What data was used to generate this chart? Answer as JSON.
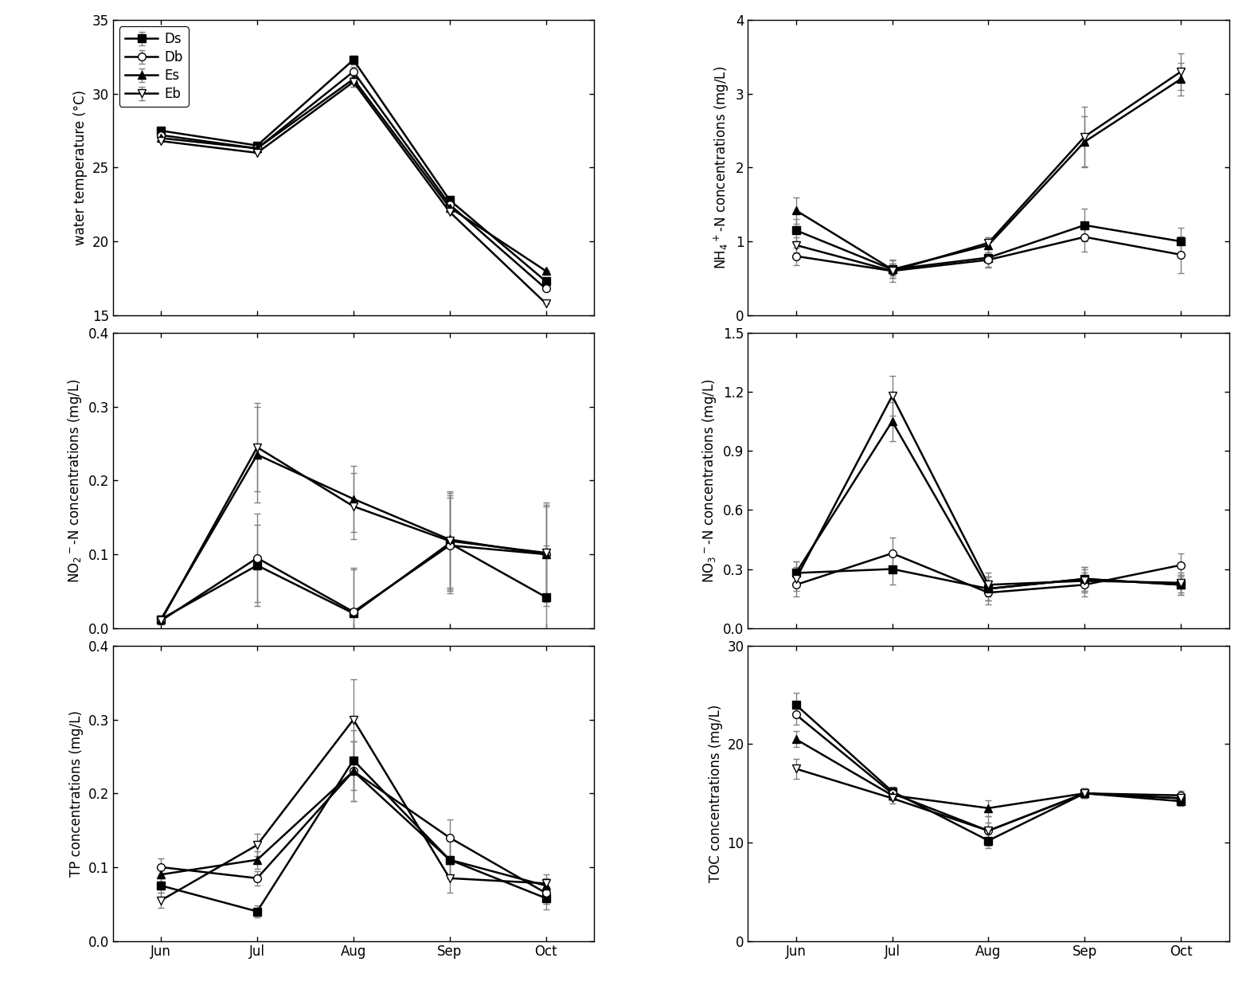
{
  "months": [
    "Jun",
    "Jul",
    "Aug",
    "Sep",
    "Oct"
  ],
  "series_labels": [
    "Ds",
    "Db",
    "Es",
    "Eb"
  ],
  "markers": [
    "s",
    "o",
    "^",
    "v"
  ],
  "marker_fills": [
    "black",
    "white",
    "black",
    "white"
  ],
  "water_temp": {
    "ylabel": "water temperature (°C)",
    "ylim": [
      15,
      35
    ],
    "yticks": [
      15,
      20,
      25,
      30,
      35
    ],
    "Ds": [
      27.5,
      26.5,
      32.3,
      22.8,
      17.3
    ],
    "Db": [
      27.2,
      26.3,
      31.5,
      22.5,
      16.8
    ],
    "Es": [
      27.0,
      26.3,
      31.0,
      22.3,
      18.0
    ],
    "Eb": [
      26.8,
      26.0,
      30.8,
      22.0,
      15.8
    ],
    "Ds_err": [
      0.0,
      0.0,
      0.3,
      0.0,
      0.0
    ],
    "Db_err": [
      0.0,
      0.0,
      0.3,
      0.0,
      0.0
    ],
    "Es_err": [
      0.0,
      0.0,
      0.5,
      0.0,
      0.0
    ],
    "Eb_err": [
      0.0,
      0.0,
      0.3,
      0.0,
      0.0
    ]
  },
  "nh4": {
    "ylabel": "NH$_4$$^+$-N concentrations (mg/L)",
    "ylim": [
      0,
      4
    ],
    "yticks": [
      0,
      1,
      2,
      3,
      4
    ],
    "Ds": [
      1.15,
      0.62,
      0.78,
      1.22,
      1.0
    ],
    "Db": [
      0.8,
      0.6,
      0.75,
      1.06,
      0.82
    ],
    "Es": [
      1.42,
      0.62,
      0.95,
      2.35,
      3.2
    ],
    "Eb": [
      0.95,
      0.6,
      0.98,
      2.42,
      3.3
    ],
    "Ds_err": [
      0.15,
      0.08,
      0.12,
      0.22,
      0.18
    ],
    "Db_err": [
      0.12,
      0.1,
      0.1,
      0.2,
      0.25
    ],
    "Es_err": [
      0.18,
      0.12,
      0.1,
      0.35,
      0.22
    ],
    "Eb_err": [
      0.1,
      0.15,
      0.08,
      0.4,
      0.25
    ]
  },
  "no2": {
    "ylabel": "NO$_2$$^-$-N concentrations (mg/L)",
    "ylim": [
      0.0,
      0.4
    ],
    "yticks": [
      0.0,
      0.1,
      0.2,
      0.3,
      0.4
    ],
    "Ds": [
      0.012,
      0.085,
      0.02,
      0.115,
      0.042
    ],
    "Db": [
      0.01,
      0.095,
      0.022,
      0.112,
      0.1
    ],
    "Es": [
      0.012,
      0.235,
      0.175,
      0.12,
      0.1
    ],
    "Eb": [
      0.01,
      0.245,
      0.165,
      0.118,
      0.102
    ],
    "Ds_err": [
      0.005,
      0.055,
      0.06,
      0.065,
      0.07
    ],
    "Db_err": [
      0.005,
      0.06,
      0.06,
      0.065,
      0.07
    ],
    "Es_err": [
      0.005,
      0.065,
      0.045,
      0.065,
      0.065
    ],
    "Eb_err": [
      0.005,
      0.06,
      0.045,
      0.065,
      0.065
    ]
  },
  "no3": {
    "ylabel": "NO$_3$$^-$-N concentrations (mg/L)",
    "ylim": [
      0.0,
      1.5
    ],
    "yticks": [
      0.0,
      0.3,
      0.6,
      0.9,
      1.2,
      1.5
    ],
    "Ds": [
      0.28,
      0.3,
      0.2,
      0.25,
      0.22
    ],
    "Db": [
      0.22,
      0.38,
      0.18,
      0.22,
      0.32
    ],
    "Es": [
      0.28,
      1.05,
      0.2,
      0.25,
      0.22
    ],
    "Eb": [
      0.25,
      1.18,
      0.22,
      0.24,
      0.23
    ],
    "Ds_err": [
      0.06,
      0.08,
      0.06,
      0.06,
      0.05
    ],
    "Db_err": [
      0.06,
      0.08,
      0.06,
      0.06,
      0.06
    ],
    "Es_err": [
      0.06,
      0.1,
      0.06,
      0.06,
      0.05
    ],
    "Eb_err": [
      0.06,
      0.1,
      0.06,
      0.06,
      0.05
    ]
  },
  "tp": {
    "ylabel": "TP concentrations (mg/L)",
    "ylim": [
      0.0,
      0.4
    ],
    "yticks": [
      0.0,
      0.1,
      0.2,
      0.3,
      0.4
    ],
    "Ds": [
      0.075,
      0.04,
      0.245,
      0.11,
      0.058
    ],
    "Db": [
      0.1,
      0.085,
      0.23,
      0.14,
      0.065
    ],
    "Es": [
      0.09,
      0.11,
      0.23,
      0.11,
      0.075
    ],
    "Eb": [
      0.055,
      0.13,
      0.3,
      0.085,
      0.078
    ],
    "Ds_err": [
      0.01,
      0.008,
      0.04,
      0.025,
      0.015
    ],
    "Db_err": [
      0.012,
      0.01,
      0.04,
      0.025,
      0.015
    ],
    "Es_err": [
      0.01,
      0.012,
      0.04,
      0.025,
      0.01
    ],
    "Eb_err": [
      0.01,
      0.015,
      0.055,
      0.02,
      0.012
    ]
  },
  "toc": {
    "ylabel": "TOC concentrations (mg/L)",
    "ylim": [
      0,
      30
    ],
    "yticks": [
      0,
      10,
      20,
      30
    ],
    "Ds": [
      24.0,
      15.2,
      10.2,
      15.0,
      14.2
    ],
    "Db": [
      23.0,
      15.0,
      11.2,
      15.0,
      14.8
    ],
    "Es": [
      20.5,
      14.8,
      13.5,
      15.0,
      14.5
    ],
    "Eb": [
      17.5,
      14.5,
      11.2,
      15.0,
      14.5
    ],
    "Ds_err": [
      1.2,
      0.5,
      0.8,
      0.5,
      0.5
    ],
    "Db_err": [
      1.0,
      0.5,
      1.5,
      0.5,
      0.5
    ],
    "Es_err": [
      0.8,
      0.5,
      0.8,
      0.5,
      0.5
    ],
    "Eb_err": [
      1.0,
      0.5,
      0.8,
      0.5,
      0.5
    ]
  }
}
